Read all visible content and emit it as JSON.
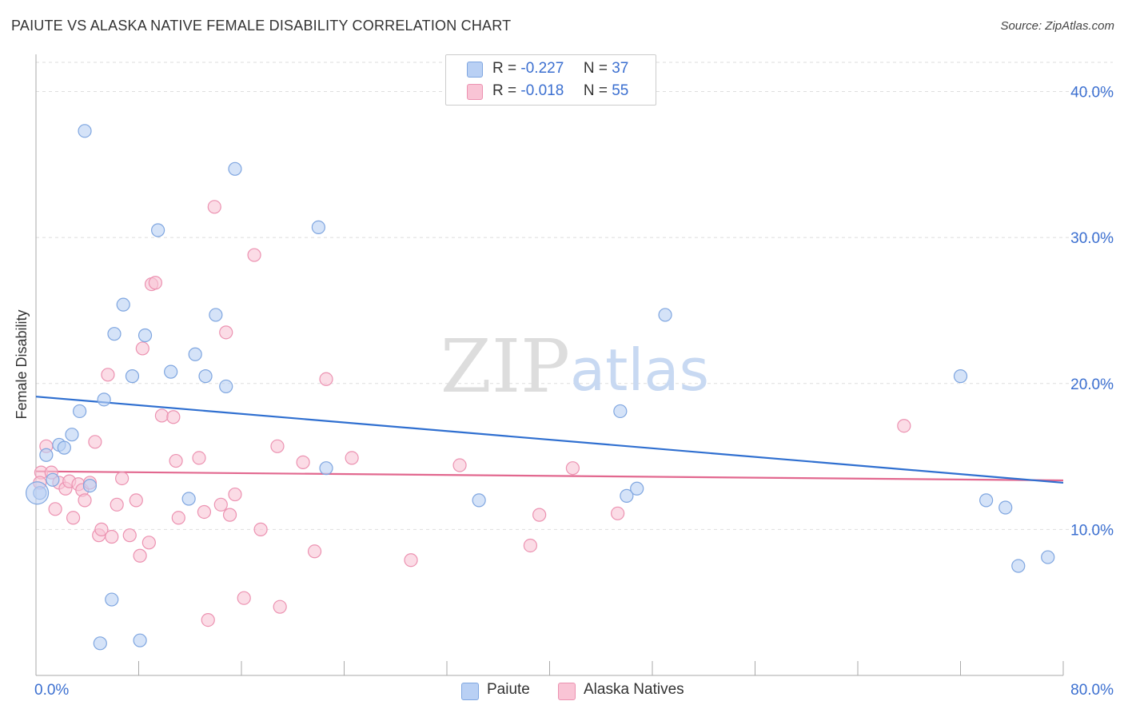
{
  "header": {
    "title": "PAIUTE VS ALASKA NATIVE FEMALE DISABILITY CORRELATION CHART",
    "source": "Source: ZipAtlas.com"
  },
  "legend": {
    "r_label": "R =",
    "n_label": "N =",
    "series": [
      {
        "r": "-0.227",
        "n": "37"
      },
      {
        "r": "-0.018",
        "n": "55"
      }
    ]
  },
  "watermark": {
    "zip": "ZIP",
    "atlas": "atlas"
  },
  "colors": {
    "paiute_fill": "#b9d0f4",
    "paiute_stroke": "#7fa6e0",
    "paiute_line": "#2f6fd0",
    "alaska_fill": "#f9c4d5",
    "alaska_stroke": "#ec92b1",
    "alaska_line": "#e2688f",
    "axis_text": "#3b6fd0"
  },
  "chart_data": {
    "type": "scatter",
    "title": "PAIUTE VS ALASKA NATIVE FEMALE DISABILITY CORRELATION CHART",
    "xlabel": "",
    "ylabel": "Female Disability",
    "xlim": [
      0,
      80
    ],
    "ylim": [
      0,
      42
    ],
    "x_tick_labels": [
      "0.0%",
      "80.0%"
    ],
    "y_ticks": [
      10,
      20,
      30,
      40
    ],
    "y_tick_labels": [
      "10.0%",
      "20.0%",
      "30.0%",
      "40.0%"
    ],
    "grid": "horizontal dashed",
    "legend_position": "top-center and bottom",
    "series": [
      {
        "name": "Paiute",
        "r": -0.227,
        "n": 37,
        "trend": {
          "x": [
            0,
            80
          ],
          "y": [
            19.1,
            13.2
          ]
        },
        "points": [
          [
            0.3,
            12.5
          ],
          [
            0.8,
            15.1
          ],
          [
            1.3,
            13.4
          ],
          [
            1.8,
            15.8
          ],
          [
            2.2,
            15.6
          ],
          [
            2.8,
            16.5
          ],
          [
            3.4,
            18.1
          ],
          [
            3.8,
            37.3
          ],
          [
            4.2,
            13.0
          ],
          [
            5.0,
            2.2
          ],
          [
            5.3,
            18.9
          ],
          [
            5.9,
            5.2
          ],
          [
            6.1,
            23.4
          ],
          [
            6.8,
            25.4
          ],
          [
            7.5,
            20.5
          ],
          [
            8.1,
            2.4
          ],
          [
            8.5,
            23.3
          ],
          [
            9.5,
            30.5
          ],
          [
            10.5,
            20.8
          ],
          [
            11.9,
            12.1
          ],
          [
            12.4,
            22.0
          ],
          [
            13.2,
            20.5
          ],
          [
            14.0,
            24.7
          ],
          [
            14.8,
            19.8
          ],
          [
            15.5,
            34.7
          ],
          [
            22.0,
            30.7
          ],
          [
            22.6,
            14.2
          ],
          [
            34.5,
            12.0
          ],
          [
            45.5,
            18.1
          ],
          [
            46.0,
            12.3
          ],
          [
            46.8,
            12.8
          ],
          [
            49.0,
            24.7
          ],
          [
            72.0,
            20.5
          ],
          [
            74.0,
            12.0
          ],
          [
            75.5,
            11.5
          ],
          [
            76.5,
            7.5
          ],
          [
            78.8,
            8.1
          ]
        ]
      },
      {
        "name": "Alaska Natives",
        "r": -0.018,
        "n": 55,
        "trend": {
          "x": [
            0,
            80
          ],
          "y": [
            13.98,
            13.36
          ]
        },
        "points": [
          [
            0.4,
            13.9
          ],
          [
            0.8,
            15.7
          ],
          [
            1.2,
            13.9
          ],
          [
            1.5,
            11.4
          ],
          [
            1.8,
            13.2
          ],
          [
            2.3,
            12.8
          ],
          [
            2.6,
            13.3
          ],
          [
            2.9,
            10.8
          ],
          [
            3.3,
            13.1
          ],
          [
            3.6,
            12.7
          ],
          [
            3.8,
            12.0
          ],
          [
            4.2,
            13.2
          ],
          [
            4.6,
            16.0
          ],
          [
            4.9,
            9.6
          ],
          [
            5.1,
            10.0
          ],
          [
            5.6,
            20.6
          ],
          [
            5.9,
            9.5
          ],
          [
            6.3,
            11.7
          ],
          [
            6.7,
            13.5
          ],
          [
            7.3,
            9.6
          ],
          [
            7.8,
            12.0
          ],
          [
            8.1,
            8.2
          ],
          [
            8.3,
            22.4
          ],
          [
            8.8,
            9.1
          ],
          [
            9.0,
            26.8
          ],
          [
            9.3,
            26.9
          ],
          [
            9.8,
            17.8
          ],
          [
            10.7,
            17.7
          ],
          [
            10.9,
            14.7
          ],
          [
            11.1,
            10.8
          ],
          [
            12.7,
            14.9
          ],
          [
            13.1,
            11.2
          ],
          [
            13.4,
            3.8
          ],
          [
            13.9,
            32.1
          ],
          [
            14.4,
            11.7
          ],
          [
            14.8,
            23.5
          ],
          [
            15.1,
            11.0
          ],
          [
            15.5,
            12.4
          ],
          [
            16.2,
            5.3
          ],
          [
            17.0,
            28.8
          ],
          [
            17.5,
            10.0
          ],
          [
            18.8,
            15.7
          ],
          [
            19.0,
            4.7
          ],
          [
            20.8,
            14.6
          ],
          [
            21.7,
            8.5
          ],
          [
            22.6,
            20.3
          ],
          [
            24.6,
            14.9
          ],
          [
            29.2,
            7.9
          ],
          [
            33.0,
            14.4
          ],
          [
            38.5,
            8.9
          ],
          [
            39.2,
            11.0
          ],
          [
            41.8,
            14.2
          ],
          [
            45.3,
            11.1
          ],
          [
            67.6,
            17.1
          ],
          [
            0.3,
            13.2
          ]
        ]
      }
    ]
  },
  "bottom_legend": {
    "items": [
      "Paiute",
      "Alaska Natives"
    ]
  }
}
